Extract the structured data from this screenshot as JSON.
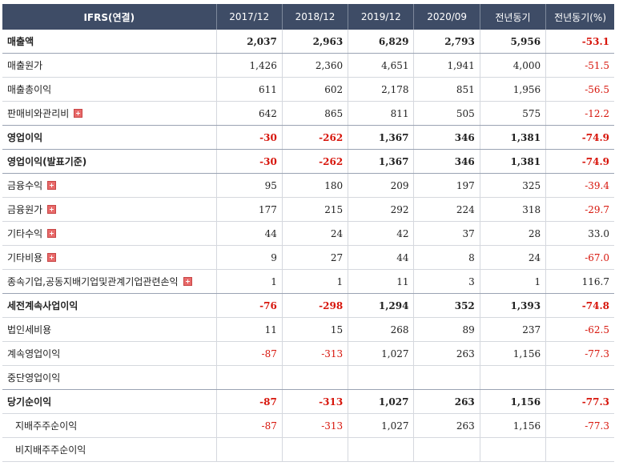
{
  "table": {
    "header": [
      "IFRS(연결)",
      "2017/12",
      "2018/12",
      "2019/12",
      "2020/09",
      "전년동기",
      "전년동기(%)"
    ],
    "rows": [
      {
        "label": "매출액",
        "bold": true,
        "major": true,
        "expandable": false,
        "indent": false,
        "values": [
          "2,037",
          "2,963",
          "6,829",
          "2,793",
          "5,956",
          "-53.1"
        ]
      },
      {
        "label": "매출원가",
        "bold": false,
        "major": false,
        "expandable": false,
        "indent": false,
        "values": [
          "1,426",
          "2,360",
          "4,651",
          "1,941",
          "4,000",
          "-51.5"
        ]
      },
      {
        "label": "매출총이익",
        "bold": false,
        "major": false,
        "expandable": false,
        "indent": false,
        "values": [
          "611",
          "602",
          "2,178",
          "851",
          "1,956",
          "-56.5"
        ]
      },
      {
        "label": "판매비와관리비",
        "bold": false,
        "major": true,
        "expandable": true,
        "indent": false,
        "values": [
          "642",
          "865",
          "811",
          "505",
          "575",
          "-12.2"
        ]
      },
      {
        "label": "영업이익",
        "bold": true,
        "major": true,
        "expandable": false,
        "indent": false,
        "values": [
          "-30",
          "-262",
          "1,367",
          "346",
          "1,381",
          "-74.9"
        ]
      },
      {
        "label": "영업이익(발표기준)",
        "bold": true,
        "major": true,
        "expandable": false,
        "indent": false,
        "values": [
          "-30",
          "-262",
          "1,367",
          "346",
          "1,381",
          "-74.9"
        ]
      },
      {
        "label": "금융수익",
        "bold": false,
        "major": false,
        "expandable": true,
        "indent": false,
        "values": [
          "95",
          "180",
          "209",
          "197",
          "325",
          "-39.4"
        ]
      },
      {
        "label": "금융원가",
        "bold": false,
        "major": false,
        "expandable": true,
        "indent": false,
        "values": [
          "177",
          "215",
          "292",
          "224",
          "318",
          "-29.7"
        ]
      },
      {
        "label": "기타수익",
        "bold": false,
        "major": false,
        "expandable": true,
        "indent": false,
        "values": [
          "44",
          "24",
          "42",
          "37",
          "28",
          "33.0"
        ]
      },
      {
        "label": "기타비용",
        "bold": false,
        "major": false,
        "expandable": true,
        "indent": false,
        "values": [
          "9",
          "27",
          "44",
          "8",
          "24",
          "-67.0"
        ]
      },
      {
        "label": "종속기업,공동지배기업및관계기업관련손익",
        "bold": false,
        "major": true,
        "expandable": true,
        "indent": false,
        "values": [
          "1",
          "1",
          "11",
          "3",
          "1",
          "116.7"
        ]
      },
      {
        "label": "세전계속사업이익",
        "bold": true,
        "major": false,
        "expandable": false,
        "indent": false,
        "values": [
          "-76",
          "-298",
          "1,294",
          "352",
          "1,393",
          "-74.8"
        ]
      },
      {
        "label": "법인세비용",
        "bold": false,
        "major": false,
        "expandable": false,
        "indent": false,
        "values": [
          "11",
          "15",
          "268",
          "89",
          "237",
          "-62.5"
        ]
      },
      {
        "label": "계속영업이익",
        "bold": false,
        "major": false,
        "expandable": false,
        "indent": false,
        "values": [
          "-87",
          "-313",
          "1,027",
          "263",
          "1,156",
          "-77.3"
        ]
      },
      {
        "label": "중단영업이익",
        "bold": false,
        "major": true,
        "expandable": false,
        "indent": false,
        "values": [
          "",
          "",
          "",
          "",
          "",
          ""
        ]
      },
      {
        "label": "당기순이익",
        "bold": true,
        "major": false,
        "expandable": false,
        "indent": false,
        "values": [
          "-87",
          "-313",
          "1,027",
          "263",
          "1,156",
          "-77.3"
        ]
      },
      {
        "label": "지배주주순이익",
        "bold": false,
        "major": false,
        "expandable": false,
        "indent": true,
        "values": [
          "-87",
          "-313",
          "1,027",
          "263",
          "1,156",
          "-77.3"
        ]
      },
      {
        "label": "비지배주주순이익",
        "bold": false,
        "major": false,
        "expandable": false,
        "indent": true,
        "values": [
          "",
          "",
          "",
          "",
          "",
          ""
        ]
      }
    ]
  },
  "colors": {
    "header_bg": "#3e4c66",
    "negative": "#d7150b",
    "expand_icon": "#e86a6a"
  },
  "icons": {
    "expand": "plus-box-icon"
  }
}
